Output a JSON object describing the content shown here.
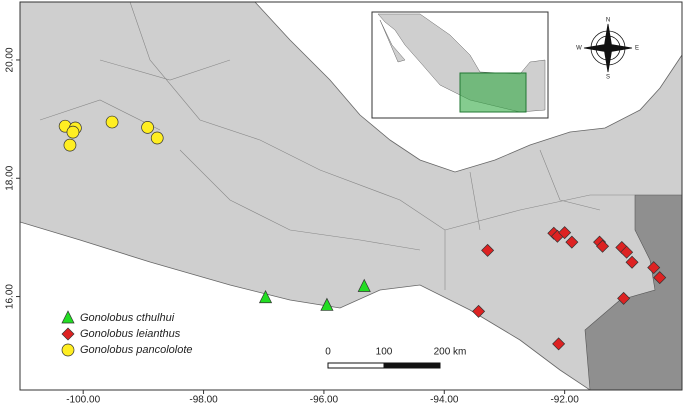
{
  "chart_data": {
    "type": "scatter",
    "xlim": [
      -101.05,
      -90.05
    ],
    "ylim": [
      14.42,
      20.98
    ],
    "xticks": [
      {
        "value": -100,
        "label": "-100.00"
      },
      {
        "value": -98,
        "label": "-98.00"
      },
      {
        "value": -96,
        "label": "-96.00"
      },
      {
        "value": -94,
        "label": "-94.00"
      },
      {
        "value": -92,
        "label": "-92.00"
      }
    ],
    "yticks": [
      {
        "value": 16,
        "label": "16.00"
      },
      {
        "value": 18,
        "label": "18.00"
      },
      {
        "value": 20,
        "label": "20.00"
      }
    ],
    "series": [
      {
        "name": "Gonolobus cthulhui",
        "color": "#22dd22",
        "marker": "triangle",
        "x": [
          -96.97,
          -95.95,
          -95.33
        ],
        "y": [
          15.98,
          15.85,
          16.17
        ]
      },
      {
        "name": "Gonolobus leianthus",
        "color": "#dd2222",
        "marker": "diamond",
        "x": [
          -93.28,
          -93.43,
          -92.18,
          -92.12,
          -92.0,
          -91.88,
          -91.42,
          -91.37,
          -91.05,
          -90.97,
          -90.88,
          -90.52,
          -90.42,
          -91.02,
          -92.1
        ],
        "y": [
          16.78,
          15.75,
          17.07,
          17.02,
          17.08,
          16.92,
          16.92,
          16.85,
          16.83,
          16.75,
          16.58,
          16.49,
          16.32,
          15.97,
          15.2
        ]
      },
      {
        "name": "Gonolobus pancololote",
        "color": "#ffee22",
        "marker": "circle",
        "x": [
          -100.3,
          -100.13,
          -100.17,
          -100.22,
          -99.52,
          -98.93,
          -98.77
        ],
        "y": [
          18.88,
          18.85,
          18.78,
          18.56,
          18.95,
          18.86,
          18.68
        ]
      }
    ],
    "scale_labels": [
      "0",
      "100",
      "200 km"
    ],
    "compass_labels": [
      "N",
      "E",
      "S",
      "W"
    ]
  }
}
